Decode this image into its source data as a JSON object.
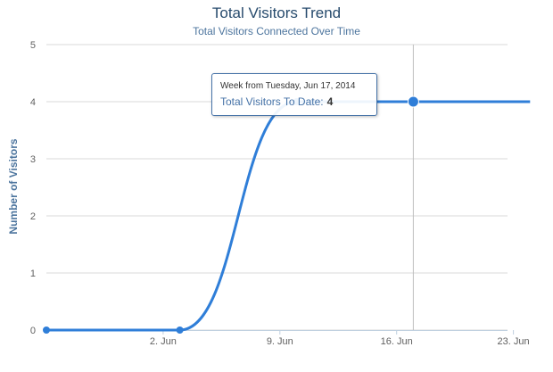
{
  "chart_data": {
    "type": "line",
    "title": "Total Visitors Trend",
    "subtitle": "Total Visitors Connected Over Time",
    "ylabel": "Number of Visitors",
    "ylim": [
      0,
      5
    ],
    "yticks": [
      "0",
      "1",
      "2",
      "3",
      "4",
      "5"
    ],
    "xlim": [
      "2014-05-26",
      "2014-06-23"
    ],
    "xticks": [
      "2. Jun",
      "9. Jun",
      "16. Jun",
      "23. Jun"
    ],
    "grid": "horizontal",
    "series": [
      {
        "color": "#2f7ed8",
        "points": [
          {
            "x": "2014-05-26",
            "y": 0
          },
          {
            "x": "2014-06-03",
            "y": 0
          },
          {
            "x": "2014-06-10",
            "y": 4
          },
          {
            "x": "2014-06-17",
            "y": 4
          },
          {
            "x": "2014-06-24",
            "y": 4
          }
        ]
      }
    ],
    "tooltip": {
      "header": "Week from Tuesday, Jun 17, 2014",
      "label": "Total Visitors To Date:",
      "value": "4"
    }
  }
}
